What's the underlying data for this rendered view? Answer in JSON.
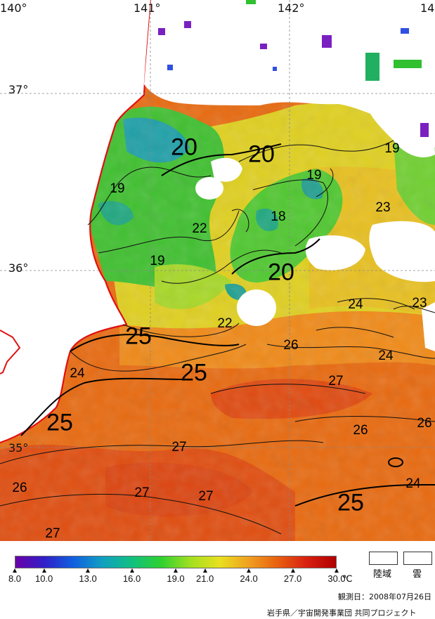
{
  "map": {
    "lon_labels": [
      "140°",
      "141°",
      "142°",
      "14"
    ],
    "lat_labels": [
      "37°",
      "36°",
      "35°"
    ],
    "contour_labels": [
      "20",
      "20",
      "19",
      "19",
      "23",
      "19",
      "22",
      "18",
      "19",
      "20",
      "24",
      "23",
      "25",
      "22",
      "26",
      "24",
      "25",
      "24",
      "27",
      "25",
      "26",
      "26",
      "27",
      "26",
      "27",
      "27",
      "24",
      "25",
      "27"
    ],
    "colors": {
      "coast": "#e01010",
      "cloud": "#ffffff",
      "contour": "#111111"
    }
  },
  "legend": {
    "min": 8.0,
    "max": 30.0,
    "tick_values": [
      8.0,
      10.0,
      13.0,
      16.0,
      19.0,
      21.0,
      24.0,
      27.0,
      30.0
    ],
    "tick_labels": [
      "8.0",
      "10.0",
      "13.0",
      "16.0",
      "19.0",
      "21.0",
      "24.0",
      "27.0",
      "30.0"
    ],
    "unit": "℃",
    "land_label": "陸域",
    "cloud_label": "雲",
    "colormap": [
      "#6a00a8",
      "#3020c8",
      "#1060e0",
      "#10a0c0",
      "#10c080",
      "#30d030",
      "#a0e020",
      "#e8e020",
      "#f0a020",
      "#e86010",
      "#d82010",
      "#b00000"
    ]
  },
  "footer": {
    "observation_date": "観測日：2008年07月26日",
    "credit": "岩手県／宇宙開発事業団  共同プロジェクト"
  }
}
